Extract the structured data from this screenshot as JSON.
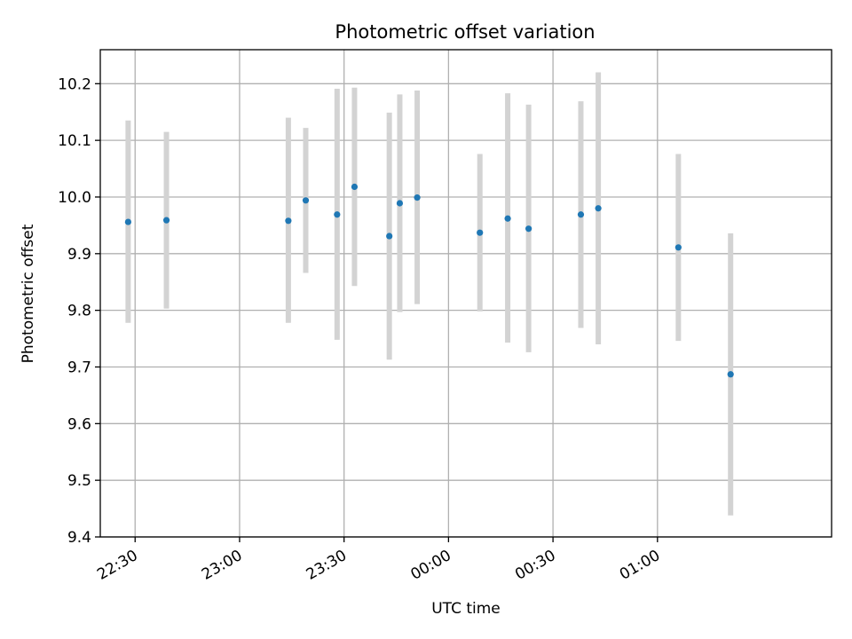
{
  "chart_data": {
    "type": "scatter",
    "title": "Photometric offset variation",
    "xlabel": "UTC time",
    "ylabel": "Photometric offset",
    "x_axis_kind": "time",
    "xlim": [
      "22:20",
      "01:50"
    ],
    "ylim": [
      9.4,
      10.26
    ],
    "x_ticks": [
      "22:30",
      "23:00",
      "23:30",
      "00:00",
      "00:30",
      "01:00"
    ],
    "y_ticks": [
      "9.4",
      "9.5",
      "9.6",
      "9.7",
      "9.8",
      "9.9",
      "10.0",
      "10.1",
      "10.2"
    ],
    "grid": true,
    "marker_color": "#1f77b4",
    "errorbar_color": "#d3d3d3",
    "series": [
      {
        "points": [
          {
            "x": "22:28",
            "y": 9.956,
            "ylow": 9.778,
            "yhigh": 10.135
          },
          {
            "x": "22:39",
            "y": 9.959,
            "ylow": 9.803,
            "yhigh": 10.115
          },
          {
            "x": "23:14",
            "y": 9.958,
            "ylow": 9.778,
            "yhigh": 10.14
          },
          {
            "x": "23:19",
            "y": 9.994,
            "ylow": 9.866,
            "yhigh": 10.122
          },
          {
            "x": "23:28",
            "y": 9.969,
            "ylow": 9.748,
            "yhigh": 10.191
          },
          {
            "x": "23:33",
            "y": 10.018,
            "ylow": 9.843,
            "yhigh": 10.193
          },
          {
            "x": "23:43",
            "y": 9.931,
            "ylow": 9.713,
            "yhigh": 10.149
          },
          {
            "x": "23:46",
            "y": 9.989,
            "ylow": 9.797,
            "yhigh": 10.181
          },
          {
            "x": "23:51",
            "y": 9.999,
            "ylow": 9.811,
            "yhigh": 10.188
          },
          {
            "x": "00:09",
            "y": 9.937,
            "ylow": 9.798,
            "yhigh": 10.076
          },
          {
            "x": "00:17",
            "y": 9.962,
            "ylow": 9.743,
            "yhigh": 10.183
          },
          {
            "x": "00:23",
            "y": 9.944,
            "ylow": 9.726,
            "yhigh": 10.163
          },
          {
            "x": "00:38",
            "y": 9.969,
            "ylow": 9.769,
            "yhigh": 10.169
          },
          {
            "x": "00:43",
            "y": 9.98,
            "ylow": 9.74,
            "yhigh": 10.22
          },
          {
            "x": "01:06",
            "y": 9.911,
            "ylow": 9.746,
            "yhigh": 10.076
          },
          {
            "x": "01:21",
            "y": 9.687,
            "ylow": 9.438,
            "yhigh": 9.936
          }
        ]
      }
    ]
  }
}
